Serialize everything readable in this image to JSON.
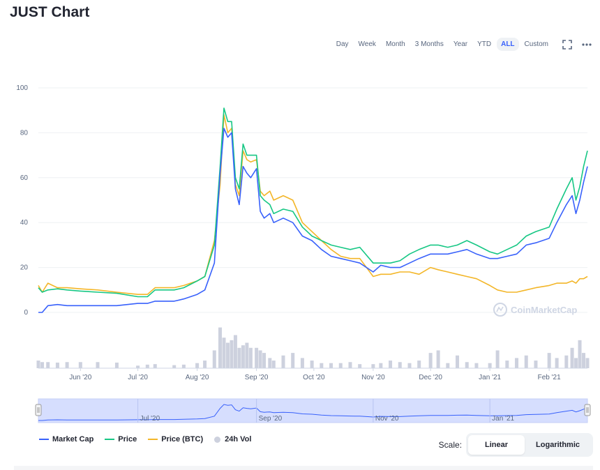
{
  "header": {
    "title": "JUST Chart"
  },
  "ranges": [
    "Day",
    "Week",
    "Month",
    "3 Months",
    "Year",
    "YTD",
    "ALL",
    "Custom"
  ],
  "active_range": "ALL",
  "tools": {
    "fullscreen_icon": "fullscreen-icon",
    "more_icon": "more-horizontal-icon"
  },
  "watermark": "CoinMarketCap",
  "legend": {
    "market_cap": "Market Cap",
    "price": "Price",
    "price_btc": "Price (BTC)",
    "vol": "24h Vol"
  },
  "scale": {
    "label": "Scale:",
    "linear": "Linear",
    "log": "Logarithmic",
    "active": "Linear"
  },
  "colors": {
    "market_cap": "#3861fb",
    "price": "#16c784",
    "price_btc": "#f3b628",
    "vol": "#cdd1de",
    "navigator_fill": "#d6defe"
  },
  "chart_data": {
    "type": "line",
    "yticks": [
      0,
      20,
      40,
      60,
      80,
      100
    ],
    "ylim": [
      0,
      100
    ],
    "xlim": [
      "2020-05-10",
      "2021-02-21"
    ],
    "xticks": [
      {
        "label": "Jun '20",
        "date": "2020-06-01"
      },
      {
        "label": "Jul '20",
        "date": "2020-07-01"
      },
      {
        "label": "Aug '20",
        "date": "2020-08-01"
      },
      {
        "label": "Sep '20",
        "date": "2020-09-01"
      },
      {
        "label": "Oct '20",
        "date": "2020-10-01"
      },
      {
        "label": "Nov '20",
        "date": "2020-11-01"
      },
      {
        "label": "Dec '20",
        "date": "2020-12-01"
      },
      {
        "label": "Jan '21",
        "date": "2021-01-01"
      },
      {
        "label": "Feb '21",
        "date": "2021-02-01"
      }
    ],
    "navigator_ticks": [
      {
        "label": "Jul '20",
        "date": "2020-07-01"
      },
      {
        "label": "Sep '20",
        "date": "2020-09-01"
      },
      {
        "label": "Nov '20",
        "date": "2020-11-01"
      },
      {
        "label": "Jan '21",
        "date": "2021-01-01"
      }
    ],
    "x": [
      "2020-05-10",
      "2020-05-12",
      "2020-05-15",
      "2020-05-20",
      "2020-05-25",
      "2020-06-01",
      "2020-06-10",
      "2020-06-20",
      "2020-07-01",
      "2020-07-06",
      "2020-07-10",
      "2020-07-20",
      "2020-07-25",
      "2020-08-01",
      "2020-08-05",
      "2020-08-10",
      "2020-08-13",
      "2020-08-15",
      "2020-08-17",
      "2020-08-19",
      "2020-08-21",
      "2020-08-23",
      "2020-08-25",
      "2020-08-27",
      "2020-08-29",
      "2020-09-01",
      "2020-09-03",
      "2020-09-05",
      "2020-09-08",
      "2020-09-10",
      "2020-09-15",
      "2020-09-20",
      "2020-09-25",
      "2020-09-30",
      "2020-10-05",
      "2020-10-10",
      "2020-10-15",
      "2020-10-20",
      "2020-10-25",
      "2020-11-01",
      "2020-11-05",
      "2020-11-10",
      "2020-11-15",
      "2020-11-20",
      "2020-11-25",
      "2020-12-01",
      "2020-12-05",
      "2020-12-10",
      "2020-12-15",
      "2020-12-20",
      "2020-12-25",
      "2021-01-01",
      "2021-01-05",
      "2021-01-10",
      "2021-01-15",
      "2021-01-20",
      "2021-01-25",
      "2021-02-01",
      "2021-02-05",
      "2021-02-10",
      "2021-02-13",
      "2021-02-15",
      "2021-02-17",
      "2021-02-19",
      "2021-02-21"
    ],
    "series": [
      {
        "name": "Market Cap",
        "key": "market_cap",
        "values": [
          0,
          0,
          3,
          3.5,
          3,
          3,
          3,
          3,
          4,
          4,
          5,
          5,
          6,
          8,
          10,
          22,
          62,
          82,
          78,
          80,
          55,
          48,
          65,
          62,
          60,
          64,
          45,
          42,
          44,
          40,
          42,
          40,
          34,
          32,
          28,
          25,
          24,
          23,
          22,
          18,
          21,
          20,
          20,
          22,
          24,
          26,
          26,
          26,
          27,
          28,
          26,
          24,
          24,
          25,
          26,
          30,
          31,
          33,
          40,
          48,
          52,
          44,
          50,
          58,
          65
        ]
      },
      {
        "name": "Price",
        "key": "price",
        "values": [
          11,
          9,
          10,
          10.5,
          10,
          9.5,
          9,
          8.5,
          7,
          7,
          10,
          10,
          11,
          14,
          16,
          30,
          65,
          91,
          85,
          85,
          60,
          55,
          75,
          70,
          70,
          70,
          52,
          50,
          48,
          44,
          46,
          45,
          38,
          34,
          32,
          30,
          29,
          28,
          29,
          22,
          22,
          22,
          23,
          26,
          28,
          30,
          30,
          29,
          30,
          32,
          30,
          27,
          26,
          28,
          30,
          34,
          36,
          38,
          46,
          55,
          60,
          50,
          56,
          65,
          72
        ]
      },
      {
        "name": "Price (BTC)",
        "key": "price_btc",
        "values": [
          12,
          9,
          13,
          11,
          11,
          10.5,
          10,
          9,
          8,
          8,
          11,
          11,
          12,
          14,
          16,
          32,
          57,
          88,
          80,
          82,
          57,
          52,
          72,
          68,
          67,
          68,
          54,
          52,
          54,
          50,
          52,
          50,
          40,
          36,
          32,
          28,
          25,
          24,
          24,
          16,
          17,
          17,
          18,
          18,
          17,
          20,
          19,
          18,
          17,
          16,
          15,
          12,
          10,
          9,
          9,
          10,
          11,
          12,
          13,
          13,
          14,
          13,
          15,
          15,
          16
        ]
      },
      {
        "name": "24h Vol",
        "key": "vol",
        "values": [
          0.15,
          0.12,
          0.12,
          0.11,
          0.12,
          0.12,
          0.12,
          0.11,
          0.05,
          0.07,
          0.08,
          0.06,
          0.07,
          0.1,
          0.15,
          0.35,
          0.8,
          0.6,
          0.5,
          0.55,
          0.65,
          0.4,
          0.45,
          0.5,
          0.4,
          0.4,
          0.35,
          0.3,
          0.2,
          0.15,
          0.25,
          0.3,
          0.2,
          0.15,
          0.1,
          0.1,
          0.1,
          0.12,
          0.08,
          0.08,
          0.1,
          0.15,
          0.12,
          0.1,
          0.15,
          0.3,
          0.35,
          0.1,
          0.25,
          0.12,
          0.1,
          0.1,
          0.35,
          0.15,
          0.2,
          0.25,
          0.15,
          0.3,
          0.2,
          0.25,
          0.4,
          0.2,
          0.55,
          0.3,
          0.2
        ]
      }
    ]
  }
}
